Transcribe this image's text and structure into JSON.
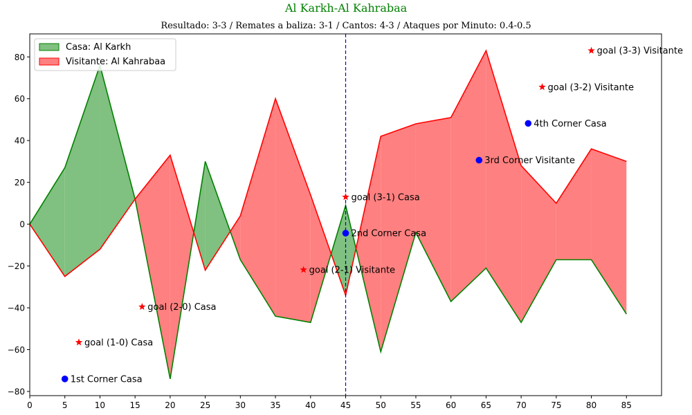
{
  "chart_data": {
    "type": "area",
    "title": "Al Karkh-Al Kahrabaa",
    "subtitle": "Resultado: 3-3 / Remates a baliza: 3-1 / Cantos: 4-3 / Ataques por Minuto: 0.4-0.5",
    "x": [
      0,
      5,
      10,
      15,
      20,
      25,
      30,
      35,
      40,
      45,
      50,
      55,
      60,
      65,
      70,
      75,
      80,
      85
    ],
    "xlim": [
      0,
      90
    ],
    "ylim": [
      -82,
      91
    ],
    "xticks": [
      "0",
      "5",
      "10",
      "15",
      "20",
      "25",
      "30",
      "35",
      "40",
      "45",
      "50",
      "55",
      "60",
      "65",
      "70",
      "75",
      "80",
      "85"
    ],
    "yticks": [
      "80",
      "60",
      "40",
      "20",
      "0",
      "−20",
      "−40",
      "−60",
      "−80"
    ],
    "series": [
      {
        "name": "Casa: Al Karkh",
        "color": "#008000",
        "fill": "#80c080",
        "values": [
          0,
          27,
          76,
          12,
          -74,
          30,
          -17,
          -44,
          -47,
          9,
          -61,
          -4,
          -37,
          -21,
          -47,
          -17,
          -17,
          -43
        ]
      },
      {
        "name": "Visitante: Al Kahrabaa",
        "color": "#ff0000",
        "fill": "#ff8080",
        "values": [
          0,
          -25,
          -12,
          12,
          33,
          -22,
          4,
          60,
          14,
          -34,
          42,
          48,
          51,
          83,
          28,
          10,
          36,
          30
        ]
      }
    ],
    "vline": {
      "x": 45,
      "color": "#0000cc"
    },
    "events": [
      {
        "x": 5,
        "y": -74,
        "marker": "circle",
        "label": "1st Corner Casa"
      },
      {
        "x": 7,
        "y": -56.5,
        "marker": "star",
        "label": "goal (1-0) Casa"
      },
      {
        "x": 16,
        "y": -39.5,
        "marker": "star",
        "label": "goal (2-0) Casa"
      },
      {
        "x": 39,
        "y": -21.8,
        "marker": "star",
        "label": "goal (2-1) Visitante"
      },
      {
        "x": 45,
        "y": -4.3,
        "marker": "circle",
        "label": "2nd Corner Casa"
      },
      {
        "x": 45,
        "y": 13,
        "marker": "star",
        "label": "goal (3-1) Casa"
      },
      {
        "x": 64,
        "y": 30.6,
        "marker": "circle",
        "label": "3rd Corner Visitante"
      },
      {
        "x": 71,
        "y": 48.2,
        "marker": "circle",
        "label": "4th Corner Casa"
      },
      {
        "x": 73,
        "y": 65.6,
        "marker": "star",
        "label": "goal (3-2) Visitante"
      },
      {
        "x": 80,
        "y": 83,
        "marker": "star",
        "label": "goal (3-3) Visitante"
      }
    ],
    "legend": {
      "position": "top-left",
      "entries": [
        "Casa: Al Karkh",
        "Visitante: Al Kahrabaa"
      ]
    },
    "colors": {
      "title": "#008000",
      "corner_marker": "#0000ff",
      "goal_marker": "#ff0000"
    }
  }
}
